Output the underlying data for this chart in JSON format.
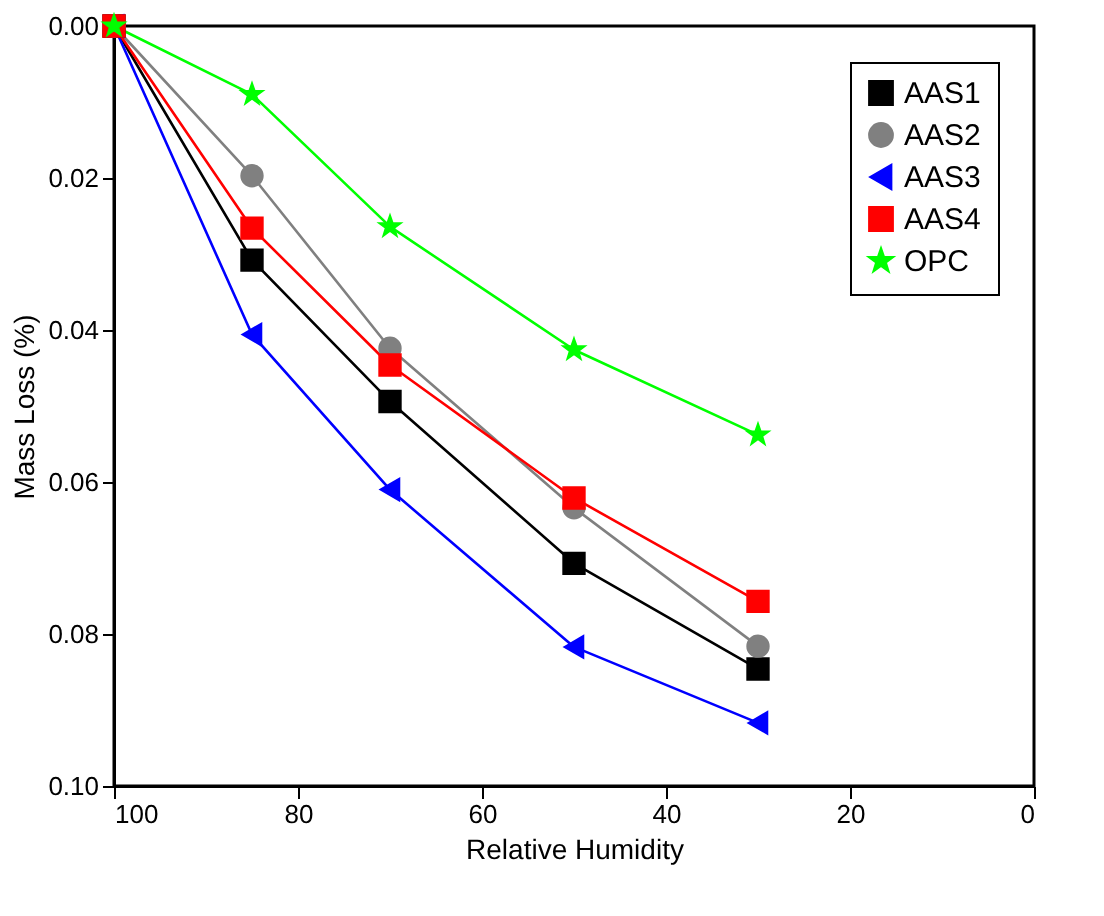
{
  "chart_data": {
    "type": "line",
    "xlabel": "Relative Humidity",
    "ylabel": "Mass Loss (%)",
    "x": [
      100,
      85,
      70,
      50,
      30
    ],
    "series": [
      {
        "name": "AAS1",
        "color": "#000000",
        "marker": "square",
        "values": [
          0,
          0.0308,
          0.0494,
          0.0707,
          0.0846
        ]
      },
      {
        "name": "AAS2",
        "color": "#808080",
        "marker": "circle",
        "values": [
          0,
          0.0197,
          0.0424,
          0.0634,
          0.0816
        ]
      },
      {
        "name": "AAS3",
        "color": "#0000ff",
        "marker": "triangle",
        "values": [
          0,
          0.0406,
          0.061,
          0.0817,
          0.0917
        ]
      },
      {
        "name": "AAS4",
        "color": "#ff0000",
        "marker": "square",
        "values": [
          0,
          0.0266,
          0.0446,
          0.0621,
          0.0757
        ]
      },
      {
        "name": "OPC",
        "color": "#00ff00",
        "marker": "star",
        "values": [
          0,
          0.009,
          0.0264,
          0.0426,
          0.0538
        ]
      }
    ],
    "xlim": [
      100,
      0
    ],
    "xticks": [
      100,
      80,
      60,
      40,
      20,
      0
    ],
    "ylim": [
      0.1,
      0
    ],
    "yticks": [
      {
        "value": 0,
        "label": "0.00"
      },
      {
        "value": 0.02,
        "label": "0.02"
      },
      {
        "value": 0.04,
        "label": "0.04"
      },
      {
        "value": 0.06,
        "label": "0.06"
      },
      {
        "value": 0.08,
        "label": "0.08"
      },
      {
        "value": 0.1,
        "label": "0.10"
      }
    ],
    "grid": false,
    "legend": "top right",
    "line_style": "solid"
  }
}
